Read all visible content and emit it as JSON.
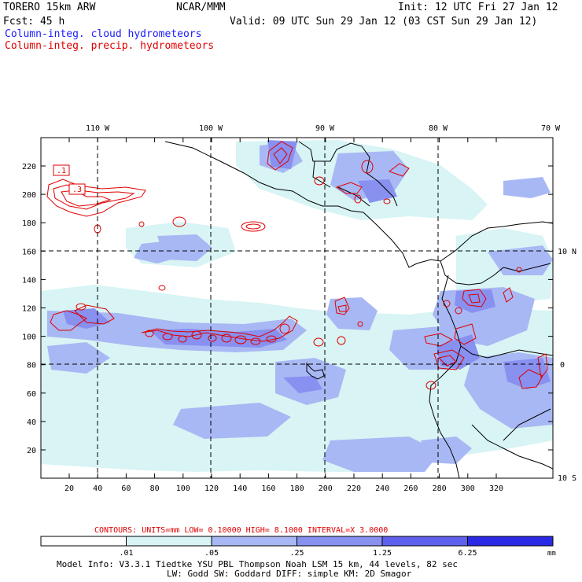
{
  "header": {
    "model": "TORERO  15km ARW",
    "center": "NCAR/MMM",
    "init": "Init: 12 UTC Fri 27 Jan 12",
    "fcst": "Fcst:   45 h",
    "valid": "Valid: 09 UTC Sun 29 Jan 12 (03 CST Sun 29 Jan 12)",
    "field_cloud": "Column-integ. cloud hydrometeors",
    "field_precip": "Column-integ. precip. hydrometeors"
  },
  "map": {
    "lon_labels": [
      "110 W",
      "100 W",
      "90 W",
      "80 W",
      "70 W"
    ],
    "lat_labels": [
      "10 N",
      "0",
      "10 S"
    ],
    "x_ticks": [
      "20",
      "40",
      "60",
      "80",
      "100",
      "120",
      "140",
      "160",
      "180",
      "200",
      "220",
      "240",
      "260",
      "280",
      "300",
      "320"
    ],
    "y_ticks": [
      "20",
      "40",
      "60",
      "80",
      "100",
      "120",
      "140",
      "160",
      "180",
      "200",
      "220"
    ],
    "contour_labels": [
      ".1",
      ".3"
    ]
  },
  "contours_info": {
    "text": "CONTOURS:  UNITS=mm  LOW= 0.10000     HIGH=  8.1000     INTERVAL=X  3.0000"
  },
  "colorbar": {
    "labels": [
      ".01",
      ".05",
      ".25",
      "1.25",
      "6.25"
    ],
    "units": "mm",
    "colors": [
      "#ffffff",
      "#d8f4f4",
      "#a8b8f4",
      "#8890f0",
      "#6060ee",
      "#2a2ae6"
    ]
  },
  "footer": {
    "line1": "Model Info: V3.3.1   Tiedtke YSU PBL  Thompson    Noah LSM  15 km,   44 levels,   82 sec",
    "line2": "LW: Godd SW: Goddard DIFF: simple KM: 2D Smagor"
  },
  "colors": {
    "cloud_light": "#d8f4f4",
    "cloud_mid": "#a8b8f4",
    "cloud_dark": "#8890f0",
    "precip": "#e00000",
    "coast": "#000000"
  }
}
